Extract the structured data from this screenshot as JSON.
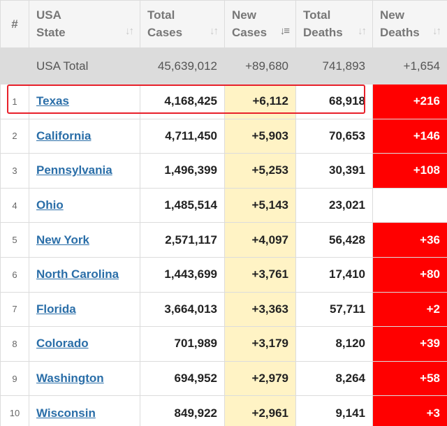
{
  "header": {
    "index": "#",
    "state": [
      "USA",
      "State"
    ],
    "total_cases": [
      "Total",
      "Cases"
    ],
    "new_cases": [
      "New",
      "Cases"
    ],
    "total_deaths": [
      "Total",
      "Deaths"
    ],
    "new_deaths": [
      "New",
      "Deaths"
    ]
  },
  "total_row": {
    "label": "USA Total",
    "total_cases": "45,639,012",
    "new_cases": "+89,680",
    "total_deaths": "741,893",
    "new_deaths": "+1,654"
  },
  "rows": [
    {
      "idx": "1",
      "state": "Texas",
      "total_cases": "4,168,425",
      "new_cases": "+6,112",
      "total_deaths": "68,918",
      "new_deaths": "+216"
    },
    {
      "idx": "2",
      "state": "California",
      "total_cases": "4,711,450",
      "new_cases": "+5,903",
      "total_deaths": "70,653",
      "new_deaths": "+146"
    },
    {
      "idx": "3",
      "state": "Pennsylvania",
      "total_cases": "1,496,399",
      "new_cases": "+5,253",
      "total_deaths": "30,391",
      "new_deaths": "+108"
    },
    {
      "idx": "4",
      "state": "Ohio",
      "total_cases": "1,485,514",
      "new_cases": "+5,143",
      "total_deaths": "23,021",
      "new_deaths": ""
    },
    {
      "idx": "5",
      "state": "New York",
      "total_cases": "2,571,117",
      "new_cases": "+4,097",
      "total_deaths": "56,428",
      "new_deaths": "+36"
    },
    {
      "idx": "6",
      "state": "North Carolina",
      "total_cases": "1,443,699",
      "new_cases": "+3,761",
      "total_deaths": "17,410",
      "new_deaths": "+80"
    },
    {
      "idx": "7",
      "state": "Florida",
      "total_cases": "3,664,013",
      "new_cases": "+3,363",
      "total_deaths": "57,711",
      "new_deaths": "+2"
    },
    {
      "idx": "8",
      "state": "Colorado",
      "total_cases": "701,989",
      "new_cases": "+3,179",
      "total_deaths": "8,120",
      "new_deaths": "+39"
    },
    {
      "idx": "9",
      "state": "Washington",
      "total_cases": "694,952",
      "new_cases": "+2,979",
      "total_deaths": "8,264",
      "new_deaths": "+58"
    },
    {
      "idx": "10",
      "state": "Wisconsin",
      "total_cases": "849,922",
      "new_cases": "+2,961",
      "total_deaths": "9,141",
      "new_deaths": "+3"
    }
  ],
  "colors": {
    "new_cases_bg": "#fff3c5",
    "new_deaths_bg": "#ff0000",
    "highlight_border": "#e8202a",
    "link": "#2a6ea8"
  },
  "sort": {
    "active_column": "new_cases",
    "direction": "descending"
  }
}
